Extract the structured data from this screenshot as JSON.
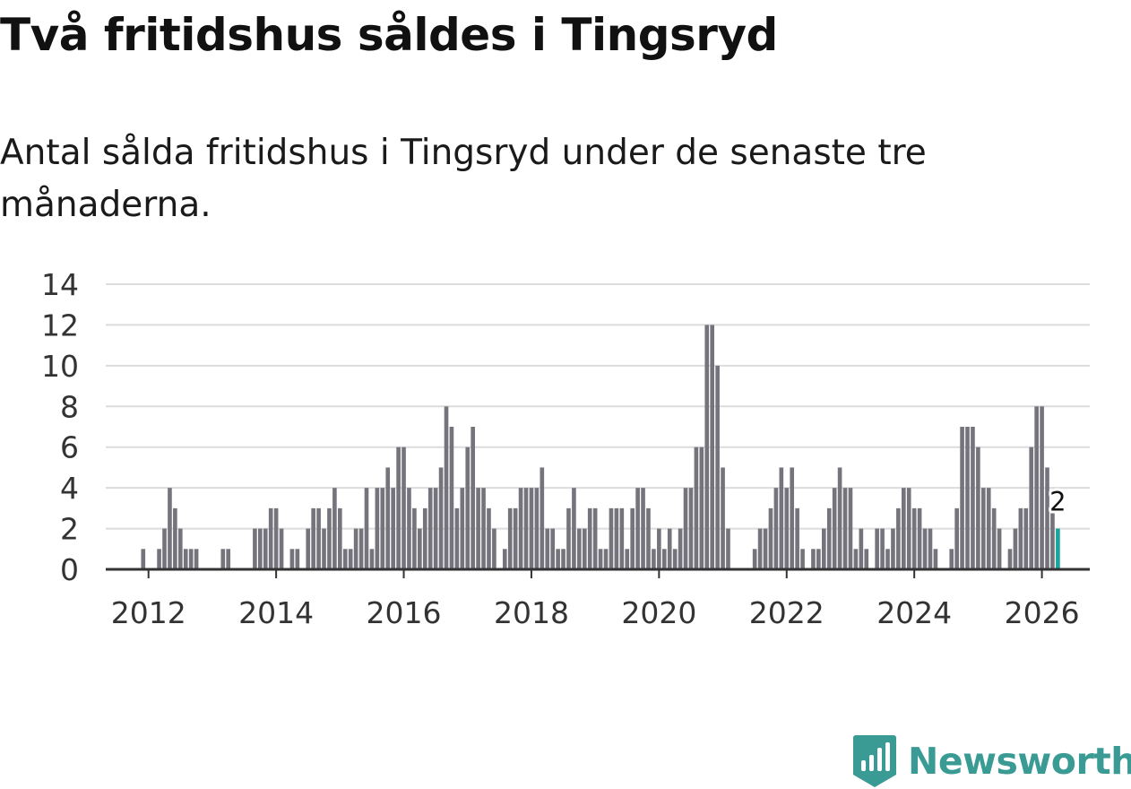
{
  "title": "Två fritidshus såldes i Tingsryd",
  "subtitle": "Antal sålda fritidshus i Tingsryd under de senaste tre månaderna.",
  "brand": {
    "name": "Newsworthy",
    "icon": "newsworthy-logo-icon",
    "color": "#3a9b95"
  },
  "colors": {
    "bar": "#75747c",
    "highlight": "#17a49b",
    "grid": "#dcdcdc",
    "axis": "#333333",
    "tick_text": "#333333"
  },
  "chart_data": {
    "type": "bar",
    "title": "Två fritidshus såldes i Tingsryd",
    "subtitle": "Antal sålda fritidshus i Tingsryd under de senaste tre månaderna.",
    "xlabel": "",
    "ylabel": "",
    "x_start": "2011-04",
    "x_range": [
      2011.33,
      2026.75
    ],
    "ylim": [
      0,
      14
    ],
    "y_ticks": [
      0,
      2,
      4,
      6,
      8,
      10,
      12,
      14
    ],
    "x_ticks": [
      2012,
      2014,
      2016,
      2018,
      2020,
      2022,
      2024,
      2026
    ],
    "grid": true,
    "values": [
      0,
      0,
      0,
      0,
      0,
      0,
      0,
      0,
      1,
      0,
      0,
      1,
      2,
      4,
      3,
      2,
      1,
      1,
      1,
      0,
      0,
      0,
      0,
      1,
      1,
      0,
      0,
      0,
      0,
      2,
      2,
      2,
      3,
      3,
      2,
      0,
      1,
      1,
      0,
      2,
      3,
      3,
      2,
      3,
      4,
      3,
      1,
      1,
      2,
      2,
      4,
      1,
      4,
      4,
      5,
      4,
      6,
      6,
      4,
      3,
      2,
      3,
      4,
      4,
      5,
      8,
      7,
      3,
      4,
      6,
      7,
      4,
      4,
      3,
      2,
      0,
      1,
      3,
      3,
      4,
      4,
      4,
      4,
      5,
      2,
      2,
      1,
      1,
      3,
      4,
      2,
      2,
      3,
      3,
      1,
      1,
      3,
      3,
      3,
      1,
      3,
      4,
      4,
      3,
      1,
      2,
      1,
      2,
      1,
      2,
      4,
      4,
      6,
      6,
      12,
      12,
      10,
      5,
      2,
      0,
      0,
      0,
      0,
      1,
      2,
      2,
      3,
      4,
      5,
      4,
      5,
      3,
      1,
      0,
      1,
      1,
      2,
      3,
      4,
      5,
      4,
      4,
      1,
      2,
      1,
      0,
      2,
      2,
      1,
      2,
      3,
      4,
      4,
      3,
      3,
      2,
      2,
      1,
      0,
      0,
      1,
      3,
      7,
      7,
      7,
      6,
      4,
      4,
      3,
      2,
      0,
      1,
      2,
      3,
      3,
      6,
      8,
      8,
      5,
      3,
      2
    ],
    "highlight": {
      "index": 180,
      "value": 2,
      "label": "2"
    }
  }
}
